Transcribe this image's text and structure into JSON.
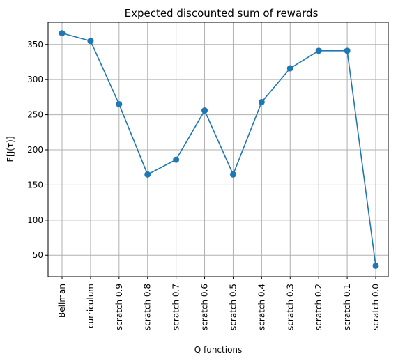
{
  "chart_data": {
    "type": "line",
    "title": "Expected discounted sum of rewards",
    "xlabel": "Q functions",
    "ylabel": "E[J(τ)]",
    "categories": [
      "Bellman",
      "curriculum",
      "scratch 0.9",
      "scratch 0.8",
      "scratch 0.7",
      "scratch 0.6",
      "scratch 0.5",
      "scratch 0.4",
      "scratch 0.3",
      "scratch 0.2",
      "scratch 0.1",
      "scratch 0.0"
    ],
    "series": [
      {
        "values": [
          366,
          355,
          265,
          165,
          186,
          256,
          165,
          268,
          316,
          341,
          341,
          35
        ]
      }
    ],
    "markers": true,
    "ylim": [
      19.5,
      381.5
    ],
    "yticks": [
      50,
      100,
      150,
      200,
      250,
      300,
      350
    ],
    "grid": true,
    "legend": "none",
    "colors": {
      "series": "#1f77b4"
    }
  }
}
